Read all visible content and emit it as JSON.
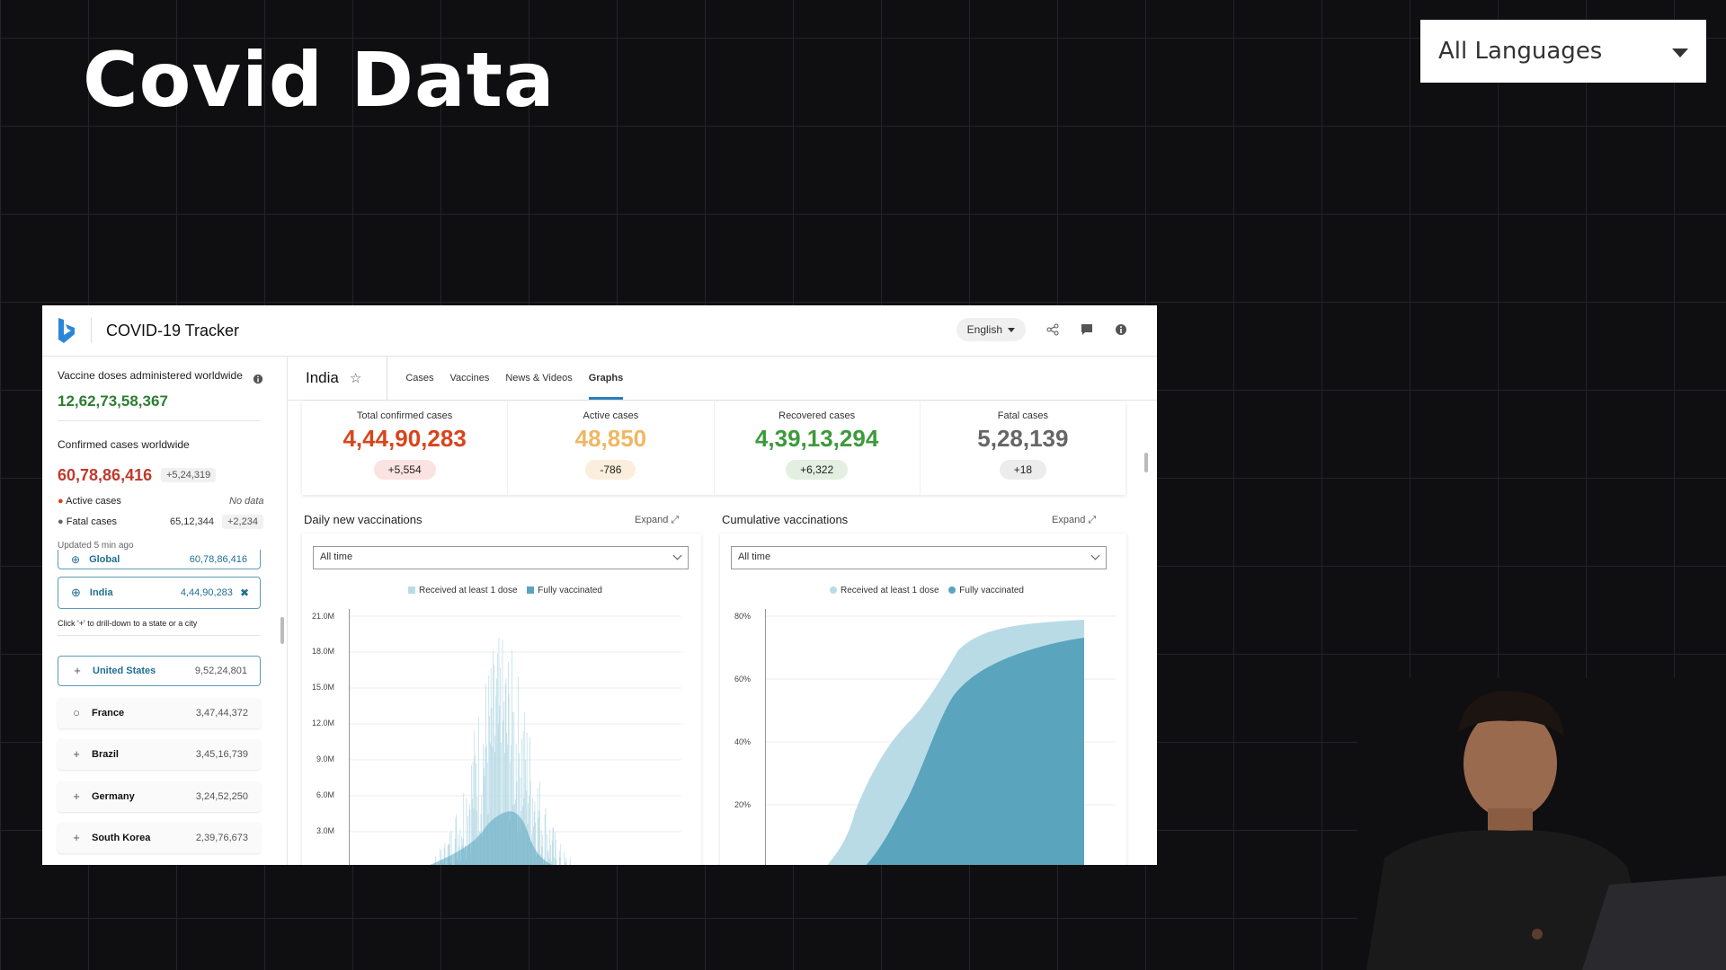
{
  "slide": {
    "title": "Covid Data",
    "language_select": "All Languages"
  },
  "app": {
    "title": "COVID-19 Tracker",
    "language": "English"
  },
  "sidebar": {
    "vaccine_label": "Vaccine doses administered worldwide",
    "vaccine_value": "12,62,73,58,367",
    "confirmed_label": "Confirmed cases worldwide",
    "confirmed_value": "60,78,86,416",
    "confirmed_delta": "+5,24,319",
    "active_label": "Active cases",
    "active_value": "No data",
    "fatal_label": "Fatal cases",
    "fatal_value": "65,12,344",
    "fatal_delta": "+2,234",
    "updated": "Updated 5 min ago",
    "hint": "Click '+' to drill-down to a state or a city",
    "global": {
      "name": "Global",
      "value": "60,78,86,416"
    },
    "india": {
      "name": "India",
      "value": "4,44,90,283"
    },
    "countries": [
      {
        "name": "United States",
        "value": "9,52,24,801"
      },
      {
        "name": "France",
        "value": "3,47,44,372"
      },
      {
        "name": "Brazil",
        "value": "3,45,16,739"
      },
      {
        "name": "Germany",
        "value": "3,24,52,250"
      },
      {
        "name": "South Korea",
        "value": "2,39,76,673"
      }
    ]
  },
  "main": {
    "country": "India",
    "tabs": [
      "Cases",
      "Vaccines",
      "News & Videos",
      "Graphs"
    ],
    "active_tab": "Graphs",
    "stats": [
      {
        "label": "Total confirmed cases",
        "value": "4,44,90,283",
        "delta": "+5,554",
        "color": "#d9441c",
        "pill": "#fbe3e1"
      },
      {
        "label": "Active cases",
        "value": "48,850",
        "delta": "-786",
        "color": "#f0b764",
        "pill": "#fbeedd"
      },
      {
        "label": "Recovered cases",
        "value": "4,39,13,294",
        "delta": "+6,322",
        "color": "#3d9a3d",
        "pill": "#e3efe0"
      },
      {
        "label": "Fatal cases",
        "value": "5,28,139",
        "delta": "+18",
        "color": "#666666",
        "pill": "#ececec"
      }
    ]
  },
  "panels": {
    "daily": {
      "title": "Daily new vaccinations",
      "expand": "Expand",
      "range": "All time",
      "legend1": "Received at least 1 dose",
      "legend2": "Fully vaccinated",
      "yticks": [
        "21.0M",
        "18.0M",
        "15.0M",
        "12.0M",
        "9.0M",
        "6.0M",
        "3.0M"
      ]
    },
    "cumulative": {
      "title": "Cumulative vaccinations",
      "expand": "Expand",
      "range": "All time",
      "legend1": "Received at least 1 dose",
      "legend2": "Fully vaccinated",
      "yticks": [
        "80%",
        "60%",
        "40%",
        "20%"
      ]
    }
  },
  "colors": {
    "light_series": "#b9dbe6",
    "dark_series": "#5aa4bd"
  }
}
